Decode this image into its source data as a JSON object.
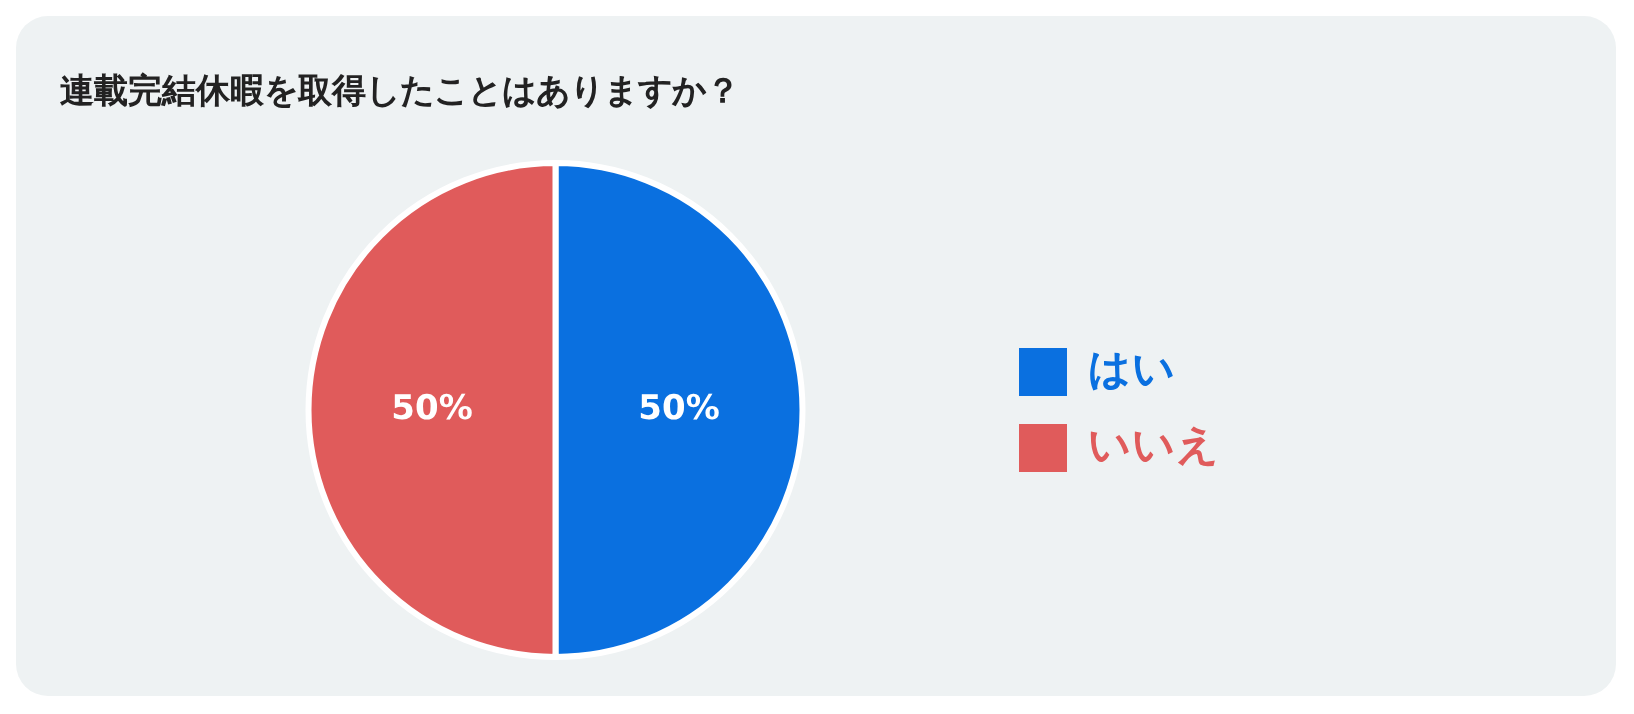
{
  "chart_data": {
    "type": "pie",
    "title": "連載完結休暇を取得したことはありますか？",
    "categories": [
      "はい",
      "いいえ"
    ],
    "values": [
      50,
      50
    ],
    "colors": [
      "#0a70e0",
      "#e05b5b"
    ],
    "value_labels": [
      "50%",
      "50%"
    ],
    "legend": "right"
  }
}
